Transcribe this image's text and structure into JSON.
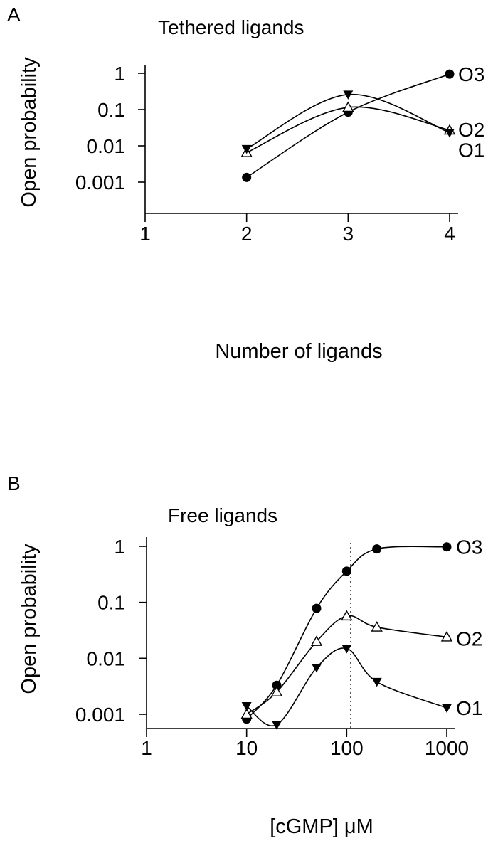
{
  "chart_data": [
    {
      "type": "line",
      "panel_label": "A",
      "title": "Tethered ligands",
      "xlabel": "Number of ligands",
      "ylabel": "Open probability",
      "xscale": "linear",
      "yscale": "log",
      "xlim": [
        1,
        4
      ],
      "ylim": [
        0.001,
        1
      ],
      "x_ticks": [
        1,
        2,
        3,
        4
      ],
      "x_tick_labels": [
        "1",
        "2",
        "3",
        "4"
      ],
      "y_ticks": [
        0.001,
        0.01,
        0.1,
        1
      ],
      "y_tick_labels": [
        "0.001",
        "0.01",
        "0.1",
        "1"
      ],
      "grid": false,
      "series_labels_position": "right of last point",
      "series": [
        {
          "name": "O3",
          "marker": "filled-circle",
          "x": [
            2,
            3,
            4
          ],
          "values": [
            0.00135,
            0.085,
            0.95
          ]
        },
        {
          "name": "O2",
          "marker": "open-triangle-up",
          "x": [
            2,
            3,
            4
          ],
          "values": [
            0.0065,
            0.115,
            0.027
          ]
        },
        {
          "name": "O1",
          "marker": "filled-triangle-down",
          "x": [
            2,
            3,
            4
          ],
          "values": [
            0.0082,
            0.26,
            0.023
          ]
        }
      ]
    },
    {
      "type": "line",
      "panel_label": "B",
      "title": "Free ligands",
      "xlabel": "[cGMP] μM",
      "ylabel": "Open probability",
      "xscale": "log",
      "yscale": "log",
      "xlim": [
        1,
        1000
      ],
      "ylim": [
        0.0006,
        1
      ],
      "x_ticks": [
        1,
        10,
        100,
        1000
      ],
      "x_tick_labels": [
        "1",
        "10",
        "100",
        "1000"
      ],
      "y_ticks": [
        0.001,
        0.01,
        0.1,
        1
      ],
      "y_tick_labels": [
        "0.001",
        "0.01",
        "0.1",
        "1"
      ],
      "grid": false,
      "reference_line": {
        "x": 110,
        "style": "dotted"
      },
      "series_labels_position": "right of last point",
      "series": [
        {
          "name": "O3",
          "marker": "filled-circle",
          "x": [
            10,
            20,
            50,
            100,
            200,
            1000
          ],
          "values": [
            0.00082,
            0.0033,
            0.078,
            0.36,
            0.9,
            0.98
          ]
        },
        {
          "name": "O2",
          "marker": "open-triangle-up",
          "x": [
            10,
            20,
            50,
            100,
            200,
            1000
          ],
          "values": [
            0.001,
            0.0025,
            0.02,
            0.057,
            0.036,
            0.024
          ]
        },
        {
          "name": "O1",
          "marker": "filled-triangle-down",
          "x": [
            10,
            20,
            50,
            100,
            200,
            1000
          ],
          "values": [
            0.0014,
            0.00065,
            0.0068,
            0.015,
            0.0038,
            0.0013
          ]
        }
      ]
    }
  ]
}
